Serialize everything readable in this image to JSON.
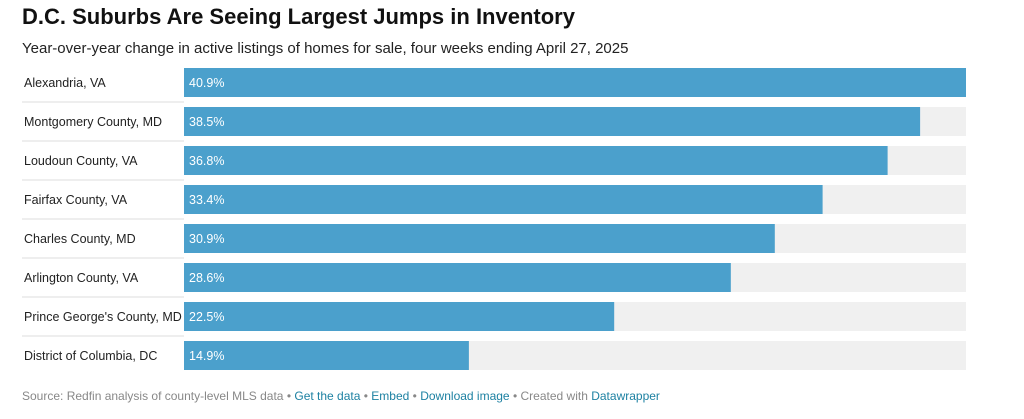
{
  "chart_data": {
    "type": "bar",
    "orientation": "horizontal",
    "title": "D.C. Suburbs Are Seeing Largest Jumps in Inventory",
    "subtitle": "Year-over-year change in active listings of homes for sale, four weeks ending April 27, 2025",
    "categories": [
      "Alexandria, VA",
      "Montgomery County, MD",
      "Loudoun County, VA",
      "Fairfax County, VA",
      "Charles County, MD",
      "Arlington County, VA",
      "Prince George's County, MD",
      "District of Columbia, DC"
    ],
    "values": [
      40.9,
      38.5,
      36.8,
      33.4,
      30.9,
      28.6,
      22.5,
      14.9
    ],
    "value_labels": [
      "40.9%",
      "38.5%",
      "36.8%",
      "33.4%",
      "30.9%",
      "28.6%",
      "22.5%",
      "14.9%"
    ],
    "color": "#4ba0cc",
    "track_color": "#f0f0f0",
    "xlim": [
      0,
      40.9
    ]
  },
  "footer": {
    "source": "Source: Redfin analysis of county-level MLS data",
    "separator": "•",
    "links": [
      "Get the data",
      "Embed",
      "Download image"
    ],
    "credit": "Created with",
    "credit_link": "Datawrapper"
  }
}
